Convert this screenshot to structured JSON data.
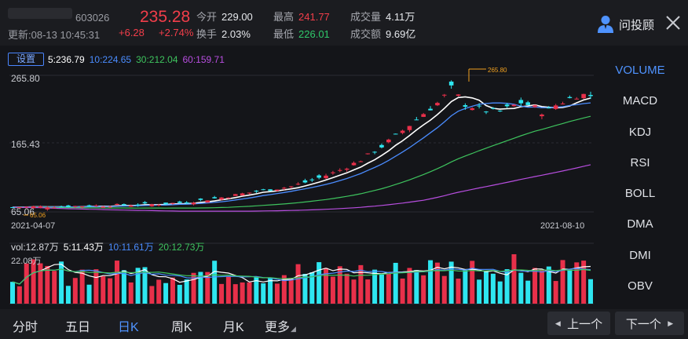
{
  "header": {
    "code": "603026",
    "update_time": "更新:08-13 10:45:31",
    "price": "235.28",
    "change": "+6.28",
    "change_pct": "+2.74%",
    "open_label": "今开",
    "open_value": "229.00",
    "turnover_label": "换手",
    "turnover_value": "2.03%",
    "high_label": "最高",
    "high_value": "241.77",
    "low_label": "最低",
    "low_value": "226.01",
    "volume_label": "成交量",
    "volume_value": "4.11万",
    "amount_label": "成交额",
    "amount_value": "9.69亿",
    "advisor_label": "问投顾",
    "colors": {
      "up": "#f23e4a",
      "down": "#2fc86a"
    }
  },
  "chart": {
    "settings_label": "设置",
    "ma_legend": [
      {
        "text": "5:236.79",
        "color": "#ffffff"
      },
      {
        "text": "10:224.65",
        "color": "#4a8cff"
      },
      {
        "text": "30:212.04",
        "color": "#3ec45e"
      },
      {
        "text": "60:159.71",
        "color": "#b84ee0"
      }
    ],
    "y_top_label": "265.80",
    "y_mid_label": "165.43",
    "y_bottom_label": "65.06",
    "min_marker": "65.06",
    "max_marker": "265.80",
    "date_start": "2021-04-07",
    "date_end": "2021-08-10",
    "vol_legend": [
      {
        "text": "vol:12.87万",
        "color": "#d9dbe0"
      },
      {
        "text": "5:11.43万",
        "color": "#ffffff"
      },
      {
        "text": "10:11.61万",
        "color": "#4a8cff"
      },
      {
        "text": "20:12.73万",
        "color": "#3ec45e"
      }
    ],
    "vol_max_label": "22.08万",
    "colors": {
      "up": "#e8304a",
      "down": "#2ee6f0"
    }
  },
  "chart_data": {
    "type": "candlestick",
    "title": "",
    "x_range": [
      "2021-04-07",
      "2021-08-10"
    ],
    "ylim": [
      65.06,
      265.8
    ],
    "y_ticks": [
      265.8,
      165.43,
      65.06
    ],
    "last_ma": {
      "ma5": 236.79,
      "ma10": 224.65,
      "ma30": 212.04,
      "ma60": 159.71
    },
    "volume_max": "22.08万",
    "last_volume": {
      "vol": "12.87万",
      "ma5": "11.43万",
      "ma10": "11.61万",
      "ma20": "12.73万"
    }
  },
  "indicators": [
    "VOLUME",
    "MACD",
    "KDJ",
    "RSI",
    "BOLL",
    "DMA",
    "DMI",
    "OBV"
  ],
  "period_tabs": [
    {
      "label": "分时"
    },
    {
      "label": "五日"
    },
    {
      "label": "日K"
    },
    {
      "label": "周K"
    },
    {
      "label": "月K"
    },
    {
      "label": "更多"
    }
  ],
  "nav": {
    "prev": "上一个",
    "next": "下一个"
  }
}
